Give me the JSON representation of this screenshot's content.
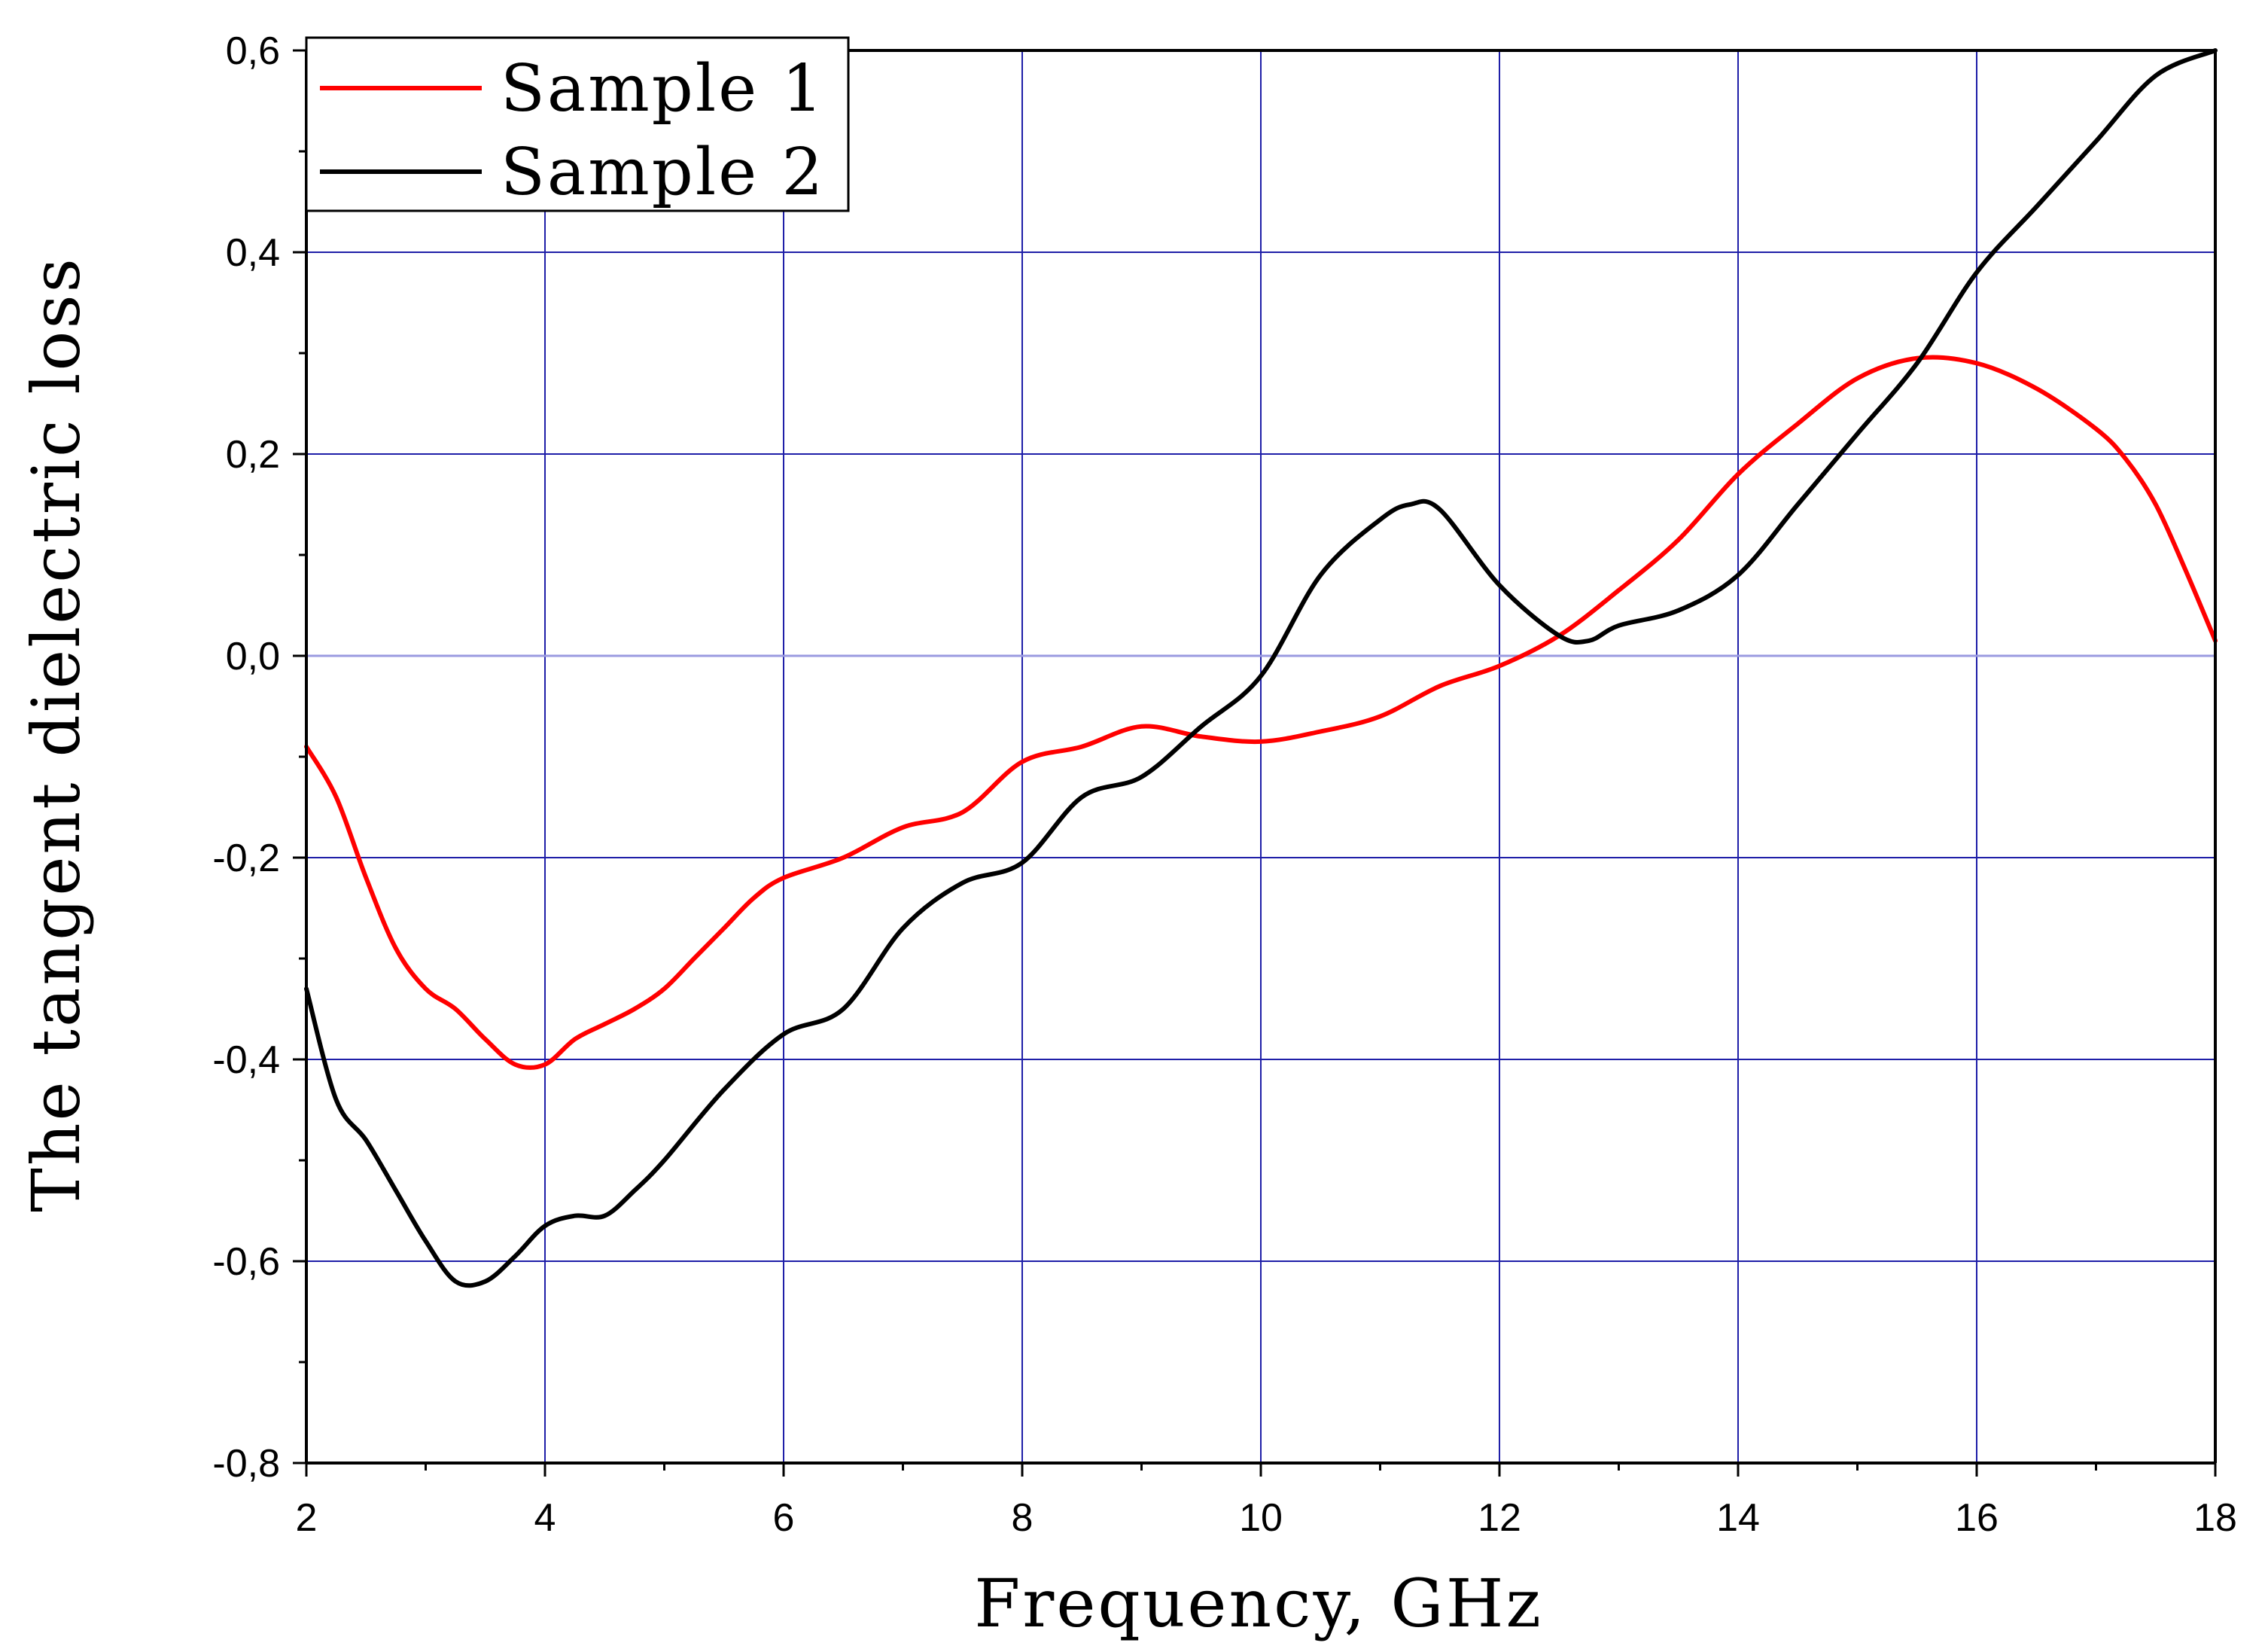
{
  "chart_data": {
    "type": "line",
    "title": "",
    "xlabel": "Frequency, GHz",
    "ylabel": "The tangent dielectric loss",
    "xlim": [
      2,
      18
    ],
    "ylim": [
      -0.8,
      0.6
    ],
    "xticks": [
      2,
      4,
      6,
      8,
      10,
      12,
      14,
      16,
      18
    ],
    "xtick_labels": [
      "2",
      "4",
      "6",
      "8",
      "10",
      "12",
      "14",
      "16",
      "18"
    ],
    "yticks": [
      -0.8,
      -0.6,
      -0.4,
      -0.2,
      0.0,
      0.2,
      0.4,
      0.6
    ],
    "ytick_labels": [
      "-0,8",
      "-0,6",
      "-0,4",
      "-0,2",
      "0,0",
      "0,2",
      "0,4",
      "0,6"
    ],
    "grid": true,
    "legend_position": "top-left",
    "colors": {
      "grid": "#1f1fa8",
      "zero_line": "#9a9ae0",
      "axis": "#000000"
    },
    "series": [
      {
        "name": "Sample 1",
        "color": "#ff0000",
        "x": [
          2.0,
          2.25,
          2.5,
          2.75,
          3.0,
          3.25,
          3.5,
          3.75,
          4.0,
          4.25,
          4.5,
          4.75,
          5.0,
          5.25,
          5.5,
          5.75,
          6.0,
          6.5,
          7.0,
          7.5,
          8.0,
          8.5,
          9.0,
          9.5,
          10.0,
          10.5,
          11.0,
          11.5,
          12.0,
          12.5,
          13.0,
          13.5,
          14.0,
          14.5,
          15.0,
          15.5,
          16.0,
          16.5,
          17.0,
          17.25,
          17.5,
          17.75,
          18.0
        ],
        "y": [
          -0.09,
          -0.14,
          -0.22,
          -0.29,
          -0.33,
          -0.35,
          -0.38,
          -0.405,
          -0.405,
          -0.38,
          -0.365,
          -0.35,
          -0.33,
          -0.3,
          -0.27,
          -0.24,
          -0.22,
          -0.2,
          -0.17,
          -0.155,
          -0.105,
          -0.09,
          -0.07,
          -0.08,
          -0.085,
          -0.075,
          -0.06,
          -0.03,
          -0.01,
          0.02,
          0.065,
          0.115,
          0.18,
          0.23,
          0.275,
          0.295,
          0.29,
          0.265,
          0.225,
          0.195,
          0.15,
          0.085,
          0.015
        ]
      },
      {
        "name": "Sample 2",
        "color": "#000000",
        "x": [
          2.0,
          2.25,
          2.5,
          2.75,
          3.0,
          3.25,
          3.5,
          3.75,
          4.0,
          4.25,
          4.5,
          4.75,
          5.0,
          5.5,
          6.0,
          6.5,
          7.0,
          7.5,
          8.0,
          8.5,
          9.0,
          9.5,
          10.0,
          10.5,
          11.0,
          11.25,
          11.5,
          12.0,
          12.5,
          12.75,
          13.0,
          13.5,
          14.0,
          14.5,
          15.0,
          15.5,
          16.0,
          16.5,
          17.0,
          17.5,
          18.0
        ],
        "y": [
          -0.33,
          -0.44,
          -0.48,
          -0.53,
          -0.58,
          -0.62,
          -0.62,
          -0.595,
          -0.565,
          -0.555,
          -0.555,
          -0.53,
          -0.5,
          -0.43,
          -0.375,
          -0.35,
          -0.27,
          -0.225,
          -0.205,
          -0.14,
          -0.12,
          -0.07,
          -0.02,
          0.08,
          0.135,
          0.15,
          0.145,
          0.07,
          0.02,
          0.015,
          0.03,
          0.045,
          0.08,
          0.15,
          0.22,
          0.29,
          0.38,
          0.445,
          0.51,
          0.575,
          0.6
        ]
      }
    ]
  }
}
